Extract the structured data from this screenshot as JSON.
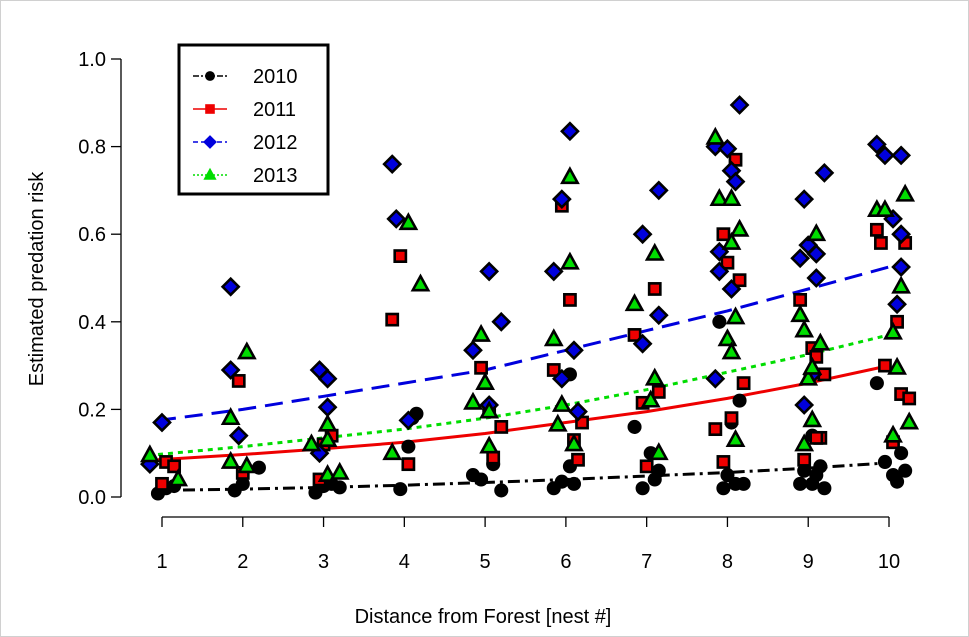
{
  "chart_data": {
    "type": "scatter",
    "xlabel": "Distance from Forest [nest #]",
    "ylabel": "Estimated predation risk",
    "xlim": [
      0.5,
      10.5
    ],
    "ylim": [
      0,
      1
    ],
    "x_ticks": [
      "1",
      "2",
      "3",
      "4",
      "5",
      "6",
      "7",
      "8",
      "9",
      "10"
    ],
    "y_ticks": [
      "0.0",
      "0.2",
      "0.4",
      "0.6",
      "0.8",
      "1.0"
    ],
    "legend_position": "top-left",
    "grid": false,
    "series": [
      {
        "name": "2010",
        "color": "#000000",
        "marker": "circle",
        "line_style": "dash-dot",
        "trend": [
          [
            0.95,
            0.015
          ],
          [
            2,
            0.018
          ],
          [
            3,
            0.022
          ],
          [
            4,
            0.027
          ],
          [
            5,
            0.033
          ],
          [
            6,
            0.04
          ],
          [
            7,
            0.048
          ],
          [
            8,
            0.056
          ],
          [
            9,
            0.066
          ],
          [
            10,
            0.078
          ]
        ],
        "points": [
          [
            0.95,
            0.008
          ],
          [
            1.05,
            0.02
          ],
          [
            1.15,
            0.025
          ],
          [
            1.9,
            0.015
          ],
          [
            2.0,
            0.03
          ],
          [
            2.2,
            0.067
          ],
          [
            2.9,
            0.01
          ],
          [
            3.0,
            0.025
          ],
          [
            3.1,
            0.03
          ],
          [
            3.2,
            0.022
          ],
          [
            3.95,
            0.018
          ],
          [
            4.05,
            0.115
          ],
          [
            4.15,
            0.19
          ],
          [
            4.1,
            0.18
          ],
          [
            4.85,
            0.05
          ],
          [
            4.95,
            0.04
          ],
          [
            5.1,
            0.075
          ],
          [
            5.2,
            0.015
          ],
          [
            5.85,
            0.02
          ],
          [
            5.95,
            0.035
          ],
          [
            6.05,
            0.07
          ],
          [
            6.1,
            0.03
          ],
          [
            6.05,
            0.28
          ],
          [
            6.85,
            0.16
          ],
          [
            6.95,
            0.02
          ],
          [
            7.1,
            0.04
          ],
          [
            7.15,
            0.06
          ],
          [
            7.05,
            0.1
          ],
          [
            7.9,
            0.4
          ],
          [
            7.95,
            0.02
          ],
          [
            8.0,
            0.05
          ],
          [
            8.05,
            0.17
          ],
          [
            8.1,
            0.03
          ],
          [
            8.15,
            0.22
          ],
          [
            8.2,
            0.03
          ],
          [
            8.9,
            0.03
          ],
          [
            8.95,
            0.06
          ],
          [
            9.05,
            0.14
          ],
          [
            9.1,
            0.05
          ],
          [
            9.15,
            0.07
          ],
          [
            9.2,
            0.02
          ],
          [
            9.05,
            0.03
          ],
          [
            9.85,
            0.26
          ],
          [
            9.95,
            0.08
          ],
          [
            10.05,
            0.05
          ],
          [
            10.1,
            0.035
          ],
          [
            10.15,
            0.1
          ],
          [
            10.2,
            0.06
          ]
        ]
      },
      {
        "name": "2011",
        "color": "#ee0000",
        "marker": "square",
        "line_style": "solid",
        "trend": [
          [
            0.95,
            0.085
          ],
          [
            2,
            0.097
          ],
          [
            3,
            0.11
          ],
          [
            4,
            0.125
          ],
          [
            5,
            0.145
          ],
          [
            6,
            0.17
          ],
          [
            7,
            0.195
          ],
          [
            8,
            0.225
          ],
          [
            9,
            0.26
          ],
          [
            10,
            0.3
          ]
        ],
        "points": [
          [
            1.0,
            0.03
          ],
          [
            1.05,
            0.08
          ],
          [
            1.15,
            0.07
          ],
          [
            1.95,
            0.265
          ],
          [
            2.0,
            0.055
          ],
          [
            2.95,
            0.04
          ],
          [
            3.0,
            0.12
          ],
          [
            3.1,
            0.14
          ],
          [
            3.85,
            0.405
          ],
          [
            3.95,
            0.55
          ],
          [
            4.05,
            0.075
          ],
          [
            4.95,
            0.295
          ],
          [
            5.05,
            0.2
          ],
          [
            5.1,
            0.09
          ],
          [
            5.2,
            0.16
          ],
          [
            5.85,
            0.29
          ],
          [
            5.95,
            0.665
          ],
          [
            6.05,
            0.45
          ],
          [
            6.1,
            0.13
          ],
          [
            6.15,
            0.085
          ],
          [
            6.2,
            0.17
          ],
          [
            6.85,
            0.37
          ],
          [
            6.95,
            0.215
          ],
          [
            7.0,
            0.07
          ],
          [
            7.1,
            0.475
          ],
          [
            7.15,
            0.24
          ],
          [
            7.95,
            0.6
          ],
          [
            8.0,
            0.535
          ],
          [
            8.05,
            0.18
          ],
          [
            8.1,
            0.77
          ],
          [
            8.15,
            0.495
          ],
          [
            8.2,
            0.26
          ],
          [
            7.85,
            0.155
          ],
          [
            7.95,
            0.08
          ],
          [
            8.9,
            0.45
          ],
          [
            8.95,
            0.085
          ],
          [
            9.05,
            0.34
          ],
          [
            9.1,
            0.32
          ],
          [
            9.15,
            0.135
          ],
          [
            9.2,
            0.28
          ],
          [
            9.1,
            0.135
          ],
          [
            9.85,
            0.61
          ],
          [
            9.9,
            0.58
          ],
          [
            9.95,
            0.3
          ],
          [
            10.05,
            0.125
          ],
          [
            10.1,
            0.4
          ],
          [
            10.15,
            0.235
          ],
          [
            10.2,
            0.58
          ],
          [
            10.25,
            0.225
          ]
        ]
      },
      {
        "name": "2012",
        "color": "#0000dd",
        "marker": "diamond",
        "line_style": "dashed",
        "trend": [
          [
            0.95,
            0.175
          ],
          [
            2,
            0.2
          ],
          [
            3,
            0.23
          ],
          [
            4,
            0.26
          ],
          [
            5,
            0.29
          ],
          [
            6,
            0.335
          ],
          [
            7,
            0.38
          ],
          [
            8,
            0.425
          ],
          [
            9,
            0.475
          ],
          [
            10,
            0.525
          ]
        ],
        "points": [
          [
            1.0,
            0.17
          ],
          [
            0.85,
            0.075
          ],
          [
            1.85,
            0.48
          ],
          [
            1.85,
            0.29
          ],
          [
            1.95,
            0.14
          ],
          [
            2.95,
            0.29
          ],
          [
            3.05,
            0.27
          ],
          [
            3.05,
            0.205
          ],
          [
            2.95,
            0.1
          ],
          [
            3.85,
            0.76
          ],
          [
            3.9,
            0.635
          ],
          [
            4.05,
            0.175
          ],
          [
            4.85,
            0.335
          ],
          [
            5.05,
            0.515
          ],
          [
            5.2,
            0.4
          ],
          [
            5.05,
            0.21
          ],
          [
            5.85,
            0.515
          ],
          [
            5.95,
            0.68
          ],
          [
            6.05,
            0.835
          ],
          [
            6.1,
            0.335
          ],
          [
            5.95,
            0.27
          ],
          [
            6.15,
            0.195
          ],
          [
            6.95,
            0.6
          ],
          [
            7.15,
            0.7
          ],
          [
            6.95,
            0.35
          ],
          [
            7.15,
            0.415
          ],
          [
            7.85,
            0.8
          ],
          [
            7.9,
            0.56
          ],
          [
            7.9,
            0.515
          ],
          [
            8.0,
            0.795
          ],
          [
            8.05,
            0.745
          ],
          [
            8.1,
            0.72
          ],
          [
            8.15,
            0.895
          ],
          [
            8.05,
            0.475
          ],
          [
            7.85,
            0.27
          ],
          [
            8.9,
            0.545
          ],
          [
            8.95,
            0.68
          ],
          [
            9.0,
            0.575
          ],
          [
            9.1,
            0.5
          ],
          [
            9.1,
            0.555
          ],
          [
            9.2,
            0.74
          ],
          [
            8.95,
            0.21
          ],
          [
            9.05,
            0.28
          ],
          [
            9.85,
            0.805
          ],
          [
            9.95,
            0.78
          ],
          [
            10.05,
            0.635
          ],
          [
            10.15,
            0.78
          ],
          [
            10.15,
            0.6
          ],
          [
            10.15,
            0.525
          ],
          [
            10.1,
            0.44
          ]
        ]
      },
      {
        "name": "2013",
        "color": "#00dd00",
        "marker": "triangle",
        "line_style": "dotted",
        "trend": [
          [
            0.95,
            0.097
          ],
          [
            2,
            0.115
          ],
          [
            3,
            0.135
          ],
          [
            4,
            0.155
          ],
          [
            5,
            0.18
          ],
          [
            6,
            0.21
          ],
          [
            7,
            0.245
          ],
          [
            8,
            0.285
          ],
          [
            9,
            0.325
          ],
          [
            10,
            0.37
          ]
        ],
        "points": [
          [
            0.85,
            0.095
          ],
          [
            1.2,
            0.04
          ],
          [
            1.85,
            0.18
          ],
          [
            1.85,
            0.08
          ],
          [
            2.05,
            0.33
          ],
          [
            2.05,
            0.07
          ],
          [
            2.85,
            0.12
          ],
          [
            3.05,
            0.165
          ],
          [
            3.05,
            0.13
          ],
          [
            3.05,
            0.05
          ],
          [
            3.2,
            0.055
          ],
          [
            3.85,
            0.1
          ],
          [
            4.05,
            0.625
          ],
          [
            4.2,
            0.485
          ],
          [
            4.85,
            0.215
          ],
          [
            4.95,
            0.37
          ],
          [
            5.0,
            0.26
          ],
          [
            5.05,
            0.195
          ],
          [
            5.05,
            0.115
          ],
          [
            5.85,
            0.36
          ],
          [
            5.9,
            0.165
          ],
          [
            5.95,
            0.21
          ],
          [
            6.05,
            0.535
          ],
          [
            6.05,
            0.73
          ],
          [
            6.1,
            0.12
          ],
          [
            6.85,
            0.44
          ],
          [
            7.05,
            0.22
          ],
          [
            7.1,
            0.555
          ],
          [
            7.1,
            0.27
          ],
          [
            7.15,
            0.1
          ],
          [
            7.85,
            0.82
          ],
          [
            7.9,
            0.68
          ],
          [
            8.0,
            0.36
          ],
          [
            8.05,
            0.68
          ],
          [
            8.05,
            0.58
          ],
          [
            8.1,
            0.41
          ],
          [
            8.15,
            0.61
          ],
          [
            8.05,
            0.33
          ],
          [
            8.1,
            0.13
          ],
          [
            8.9,
            0.415
          ],
          [
            8.95,
            0.38
          ],
          [
            9.0,
            0.27
          ],
          [
            9.05,
            0.295
          ],
          [
            9.1,
            0.6
          ],
          [
            9.15,
            0.35
          ],
          [
            9.05,
            0.175
          ],
          [
            8.95,
            0.12
          ],
          [
            9.85,
            0.655
          ],
          [
            9.95,
            0.655
          ],
          [
            10.05,
            0.375
          ],
          [
            10.1,
            0.295
          ],
          [
            10.15,
            0.48
          ],
          [
            10.2,
            0.69
          ],
          [
            10.25,
            0.17
          ],
          [
            10.05,
            0.14
          ]
        ]
      }
    ]
  }
}
